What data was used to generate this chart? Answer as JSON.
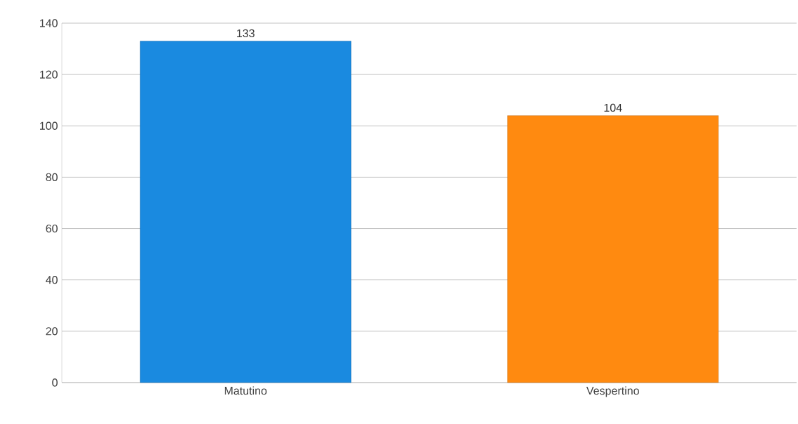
{
  "chart_data": {
    "type": "bar",
    "categories": [
      "Matutino",
      "Vespertino"
    ],
    "values": [
      133,
      104
    ],
    "colors": [
      "#1a8ae0",
      "#ff8a10"
    ],
    "ylim": [
      0,
      140
    ],
    "yticks": [
      0,
      20,
      40,
      60,
      80,
      100,
      120,
      140
    ],
    "grid": "y",
    "data_labels": true
  }
}
